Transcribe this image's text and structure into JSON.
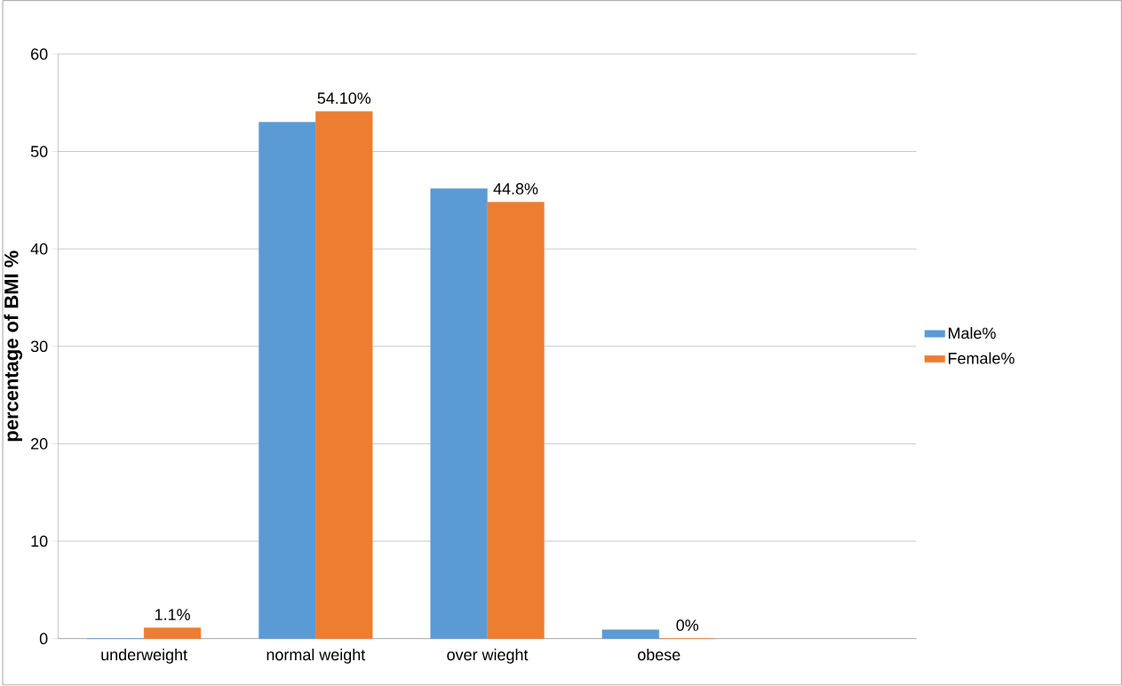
{
  "chart_data": {
    "type": "bar",
    "ylabel": "percentage of BMI %",
    "categories": [
      "underweight",
      "normal weight",
      "over wieght",
      "obese",
      null
    ],
    "series": [
      {
        "name": "Male%",
        "color": "#5b9bd5",
        "values": [
          0,
          53.0,
          46.2,
          0.9,
          null
        ]
      },
      {
        "name": "Female%",
        "color": "#ed7d31",
        "values": [
          1.1,
          54.1,
          44.8,
          0,
          null
        ],
        "value_labels": [
          "1.1%",
          "54.10%",
          "44.8%",
          "0%",
          null
        ]
      }
    ],
    "ylim": [
      0,
      60
    ],
    "yticks": [
      0,
      10,
      20,
      30,
      40,
      50,
      60
    ],
    "grid": "y",
    "legend": "right"
  }
}
